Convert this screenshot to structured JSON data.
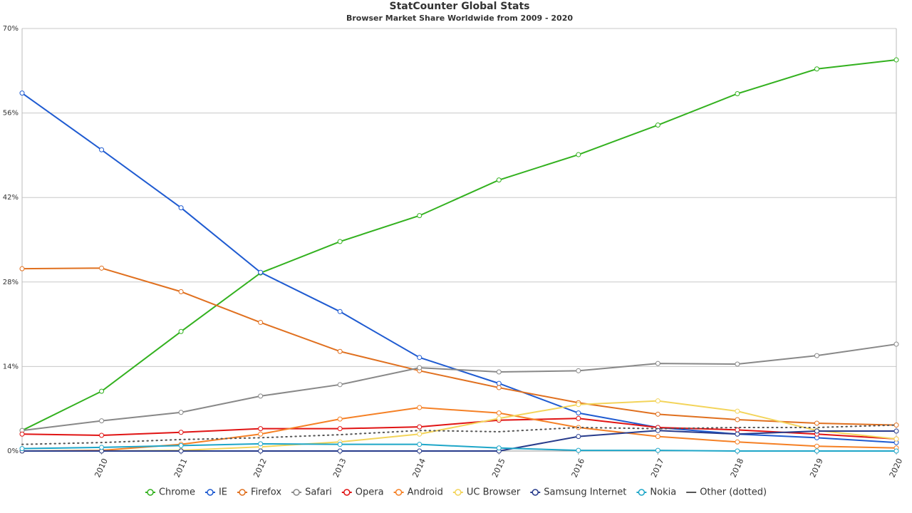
{
  "chart_data": {
    "type": "line",
    "title": "StatCounter Global Stats",
    "subtitle": "Browser Market Share Worldwide from 2009 - 2020",
    "x": [
      2009,
      2010,
      2011,
      2012,
      2013,
      2014,
      2015,
      2016,
      2017,
      2018,
      2019,
      2020
    ],
    "xlim": [
      2009,
      2020
    ],
    "xticks": [
      2010,
      2011,
      2012,
      2013,
      2014,
      2015,
      2016,
      2017,
      2018,
      2019,
      2020
    ],
    "ylim": [
      0,
      70
    ],
    "yticks": [
      {
        "value": 0,
        "label": "0%"
      },
      {
        "value": 14,
        "label": "14%"
      },
      {
        "value": 28,
        "label": "28%"
      },
      {
        "value": 42,
        "label": "42%"
      },
      {
        "value": 56,
        "label": "56%"
      },
      {
        "value": 70,
        "label": "70%"
      }
    ],
    "grid": true,
    "legend": "bottom",
    "series": [
      {
        "name": "Chrome",
        "color": "#33b11f",
        "values": [
          3.4,
          9.9,
          19.8,
          29.5,
          34.7,
          39.0,
          44.9,
          49.1,
          54.0,
          59.2,
          63.3,
          64.8
        ]
      },
      {
        "name": "IE",
        "color": "#1f5bd1",
        "values": [
          59.3,
          49.9,
          40.3,
          29.6,
          23.1,
          15.5,
          11.2,
          6.3,
          3.9,
          2.8,
          2.2,
          1.4
        ]
      },
      {
        "name": "Firefox",
        "color": "#e0701f",
        "values": [
          30.2,
          30.3,
          26.4,
          21.3,
          16.5,
          13.3,
          10.5,
          8.0,
          6.1,
          5.2,
          4.6,
          4.3
        ]
      },
      {
        "name": "Safari",
        "color": "#888888",
        "values": [
          3.4,
          5.0,
          6.4,
          9.1,
          11.0,
          13.8,
          13.1,
          13.3,
          14.5,
          14.4,
          15.8,
          17.7
        ]
      },
      {
        "name": "Opera",
        "color": "#e01414",
        "values": [
          2.8,
          2.6,
          3.1,
          3.7,
          3.7,
          4.0,
          5.1,
          5.4,
          3.9,
          3.5,
          2.8,
          2.0
        ]
      },
      {
        "name": "Android",
        "color": "#f58025",
        "values": [
          0,
          0.1,
          1.1,
          2.8,
          5.3,
          7.2,
          6.3,
          3.9,
          2.4,
          1.5,
          0.8,
          0.5
        ]
      },
      {
        "name": "UC Browser",
        "color": "#f3d45a",
        "values": [
          0,
          0,
          0.1,
          0.7,
          1.5,
          2.8,
          5.4,
          7.7,
          8.3,
          6.6,
          3.4,
          2.0
        ]
      },
      {
        "name": "Samsung Internet",
        "color": "#283c8c",
        "values": [
          0,
          0,
          0,
          0,
          0,
          0,
          0,
          2.4,
          3.4,
          2.8,
          3.3,
          3.3
        ]
      },
      {
        "name": "Nokia",
        "color": "#1ea6c8",
        "values": [
          0.4,
          0.6,
          0.9,
          1.2,
          1.1,
          1.1,
          0.5,
          0.1,
          0.1,
          0,
          0,
          0
        ]
      },
      {
        "name": "Other (dotted)",
        "color": "#555555",
        "dash": "dotted",
        "markers": false,
        "values": [
          1.1,
          1.4,
          1.9,
          2.2,
          2.7,
          3.4,
          3.2,
          3.9,
          3.7,
          3.9,
          3.9,
          4.3
        ]
      }
    ]
  }
}
